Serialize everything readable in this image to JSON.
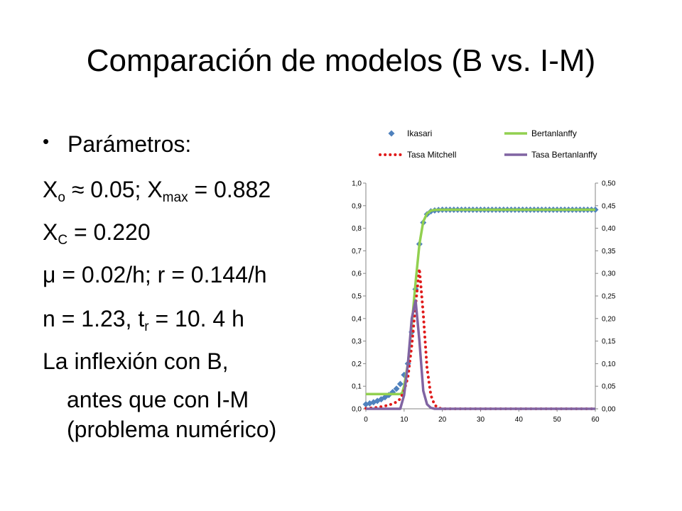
{
  "slide": {
    "title": "Comparación de modelos (B vs. I-M)",
    "bullet_label": "Parámetros:",
    "lines": {
      "x0": {
        "a": "X",
        "a_sub": "o",
        "b": " ≈ 0.05; X",
        "b_sub": "max",
        "c": " = 0.882"
      },
      "xc": {
        "a": "X",
        "a_sub": "C",
        "b": " = 0.220"
      },
      "mu": {
        "text": "μ = 0.02/h; r = 0.144/h"
      },
      "n": {
        "a": "n = 1.23, t",
        "a_sub": "r",
        "b": " = 10. 4 h"
      },
      "inflex": [
        "La inflexión con B,",
        "antes que con I-M",
        "(problema numérico)"
      ]
    }
  },
  "chart_data": {
    "type": "line",
    "x_ticks": [
      "0",
      "10",
      "20",
      "30",
      "40",
      "50",
      "60"
    ],
    "y_left_ticks": [
      "0,0",
      "0,1",
      "0,2",
      "0,3",
      "0,4",
      "0,5",
      "0,6",
      "0,7",
      "0,8",
      "0,9",
      "1,0"
    ],
    "y_right_ticks": [
      "0,00",
      "0,05",
      "0,10",
      "0,15",
      "0,20",
      "0,25",
      "0,30",
      "0,35",
      "0,40",
      "0,45",
      "0,50"
    ],
    "xlim": [
      0,
      60
    ],
    "ylim_left": [
      0,
      1
    ],
    "ylim_right": [
      0,
      0.5
    ],
    "legend_position": "top",
    "series": [
      {
        "name": "Ikasari",
        "axis": "left",
        "style": "diamond-markers",
        "color": "#4f81bd",
        "x": [
          0,
          1,
          2,
          3,
          4,
          5,
          6,
          7,
          8,
          9,
          10,
          11,
          12,
          13,
          14,
          15,
          16,
          17,
          18,
          19,
          20,
          21,
          22,
          23,
          24,
          25,
          26,
          27,
          28,
          29,
          30,
          31,
          32,
          33,
          34,
          35,
          36,
          37,
          38,
          39,
          40,
          41,
          42,
          43,
          44,
          45,
          46,
          47,
          48,
          49,
          50,
          51,
          52,
          53,
          54,
          55,
          56,
          57,
          58,
          59,
          60
        ],
        "y": [
          0.02,
          0.024,
          0.029,
          0.035,
          0.042,
          0.051,
          0.061,
          0.074,
          0.089,
          0.11,
          0.15,
          0.2,
          0.34,
          0.53,
          0.73,
          0.825,
          0.862,
          0.875,
          0.879,
          0.881,
          0.882,
          0.882,
          0.882,
          0.882,
          0.882,
          0.882,
          0.882,
          0.882,
          0.882,
          0.882,
          0.882,
          0.882,
          0.882,
          0.882,
          0.882,
          0.882,
          0.882,
          0.882,
          0.882,
          0.882,
          0.882,
          0.882,
          0.882,
          0.882,
          0.882,
          0.882,
          0.882,
          0.882,
          0.882,
          0.882,
          0.882,
          0.882,
          0.882,
          0.882,
          0.882,
          0.882,
          0.882,
          0.882,
          0.882,
          0.882,
          0.882
        ]
      },
      {
        "name": "Bertanlanffy",
        "axis": "left",
        "style": "solid",
        "color": "#92d050",
        "x": [
          0,
          9,
          9.5,
          10,
          11,
          12,
          13,
          14,
          15,
          16,
          17,
          18,
          20,
          60
        ],
        "y": [
          0.065,
          0.065,
          0.07,
          0.1,
          0.2,
          0.37,
          0.56,
          0.73,
          0.83,
          0.865,
          0.878,
          0.881,
          0.882,
          0.882
        ]
      },
      {
        "name": "Tasa Mitchell",
        "axis": "right",
        "style": "dotted",
        "color": "#e01b1b",
        "x": [
          0,
          3,
          6,
          8,
          9,
          10,
          11,
          12,
          13,
          14,
          15,
          16,
          17,
          18,
          19,
          20,
          60
        ],
        "y": [
          0.001,
          0.003,
          0.008,
          0.015,
          0.022,
          0.04,
          0.07,
          0.14,
          0.23,
          0.31,
          0.21,
          0.09,
          0.03,
          0.008,
          0.002,
          0,
          0
        ]
      },
      {
        "name": "Tasa Bertanlanffy",
        "axis": "right",
        "style": "solid",
        "color": "#8064a2",
        "x": [
          0,
          9,
          10,
          11,
          12,
          13,
          14,
          15,
          16,
          17,
          18,
          60
        ],
        "y": [
          0,
          0,
          0.03,
          0.1,
          0.2,
          0.24,
          0.15,
          0.04,
          0.01,
          0.002,
          0,
          0
        ]
      }
    ]
  }
}
